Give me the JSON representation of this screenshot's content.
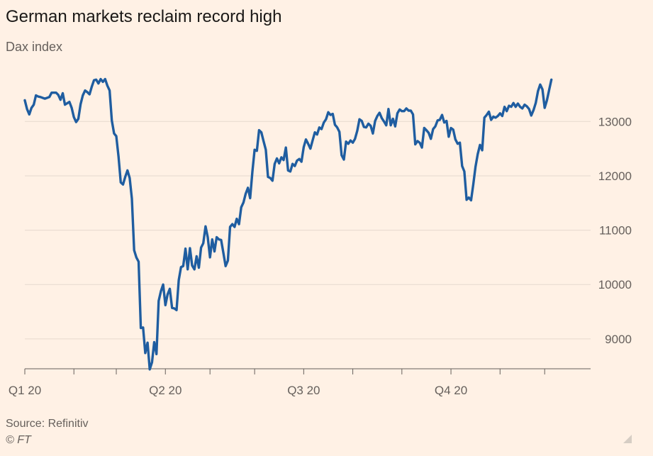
{
  "header": {
    "title": "German markets reclaim record high",
    "subtitle": "Dax index"
  },
  "footer": {
    "source": "Source: Refinitiv",
    "credit": "© FT"
  },
  "colors": {
    "background": "#fff1e5",
    "line": "#1f5da0",
    "grid": "#e6d9ce",
    "axis": "#66605c",
    "text": "#33302e"
  },
  "chart_data": {
    "type": "line",
    "x_unit": "trading day of 2020 (approx.)",
    "xlim": [
      0,
      252
    ],
    "ylim": [
      8450,
      13800
    ],
    "y_axis_position": "right",
    "grid": "horizontal",
    "yticks": [
      {
        "value": 9000,
        "label": "9000"
      },
      {
        "value": 10000,
        "label": "10000"
      },
      {
        "value": 11000,
        "label": "11000"
      },
      {
        "value": 12000,
        "label": "12000"
      },
      {
        "value": 13000,
        "label": "13000"
      }
    ],
    "x_labels": [
      {
        "day": 0,
        "label": "Q1 20"
      },
      {
        "day": 63,
        "label": "Q2 20"
      },
      {
        "day": 125,
        "label": "Q3 20"
      },
      {
        "day": 191,
        "label": "Q4 20"
      }
    ],
    "x_month_ticks": [
      0,
      22,
      41,
      63,
      83,
      103,
      125,
      147,
      169,
      191,
      213,
      233
    ],
    "series": [
      {
        "values": [
          [
            0,
            13390
          ],
          [
            1,
            13230
          ],
          [
            2,
            13130
          ],
          [
            3,
            13250
          ],
          [
            4,
            13310
          ],
          [
            5,
            13480
          ],
          [
            6,
            13460
          ],
          [
            7,
            13450
          ],
          [
            9,
            13420
          ],
          [
            11,
            13450
          ],
          [
            12,
            13530
          ],
          [
            14,
            13530
          ],
          [
            15,
            13490
          ],
          [
            16,
            13400
          ],
          [
            17,
            13520
          ],
          [
            18,
            13310
          ],
          [
            20,
            13360
          ],
          [
            21,
            13250
          ],
          [
            22,
            13080
          ],
          [
            23,
            12990
          ],
          [
            24,
            13050
          ],
          [
            25,
            13320
          ],
          [
            26,
            13480
          ],
          [
            27,
            13570
          ],
          [
            28,
            13540
          ],
          [
            29,
            13500
          ],
          [
            30,
            13640
          ],
          [
            31,
            13760
          ],
          [
            32,
            13770
          ],
          [
            33,
            13700
          ],
          [
            34,
            13780
          ],
          [
            35,
            13730
          ],
          [
            36,
            13780
          ],
          [
            37,
            13660
          ],
          [
            38,
            13570
          ],
          [
            39,
            13020
          ],
          [
            40,
            12780
          ],
          [
            41,
            12730
          ],
          [
            42,
            12350
          ],
          [
            43,
            11880
          ],
          [
            44,
            11840
          ],
          [
            45,
            11980
          ],
          [
            46,
            12100
          ],
          [
            47,
            11960
          ],
          [
            48,
            11580
          ],
          [
            49,
            10630
          ],
          [
            50,
            10500
          ],
          [
            51,
            10420
          ],
          [
            52,
            9200
          ],
          [
            53,
            9210
          ],
          [
            54,
            8740
          ],
          [
            55,
            8930
          ],
          [
            56,
            8440
          ],
          [
            57,
            8570
          ],
          [
            58,
            8940
          ],
          [
            59,
            8720
          ],
          [
            60,
            9700
          ],
          [
            61,
            9880
          ],
          [
            62,
            10000
          ],
          [
            63,
            9620
          ],
          [
            64,
            9820
          ],
          [
            65,
            9920
          ],
          [
            66,
            9570
          ],
          [
            67,
            9560
          ],
          [
            68,
            9530
          ],
          [
            69,
            10080
          ],
          [
            70,
            10320
          ],
          [
            71,
            10340
          ],
          [
            72,
            10660
          ],
          [
            73,
            10280
          ],
          [
            74,
            10670
          ],
          [
            75,
            10350
          ],
          [
            76,
            10280
          ],
          [
            77,
            10520
          ],
          [
            78,
            10310
          ],
          [
            79,
            10680
          ],
          [
            80,
            10760
          ],
          [
            81,
            11070
          ],
          [
            82,
            10870
          ],
          [
            83,
            10500
          ],
          [
            84,
            10830
          ],
          [
            85,
            10610
          ],
          [
            86,
            10870
          ],
          [
            87,
            10830
          ],
          [
            88,
            10820
          ],
          [
            89,
            10580
          ],
          [
            90,
            10340
          ],
          [
            91,
            10440
          ],
          [
            92,
            11060
          ],
          [
            93,
            11110
          ],
          [
            94,
            11060
          ],
          [
            95,
            11210
          ],
          [
            96,
            11110
          ],
          [
            97,
            11420
          ],
          [
            98,
            11510
          ],
          [
            99,
            11670
          ],
          [
            100,
            11780
          ],
          [
            101,
            11590
          ],
          [
            102,
            12080
          ],
          [
            103,
            12480
          ],
          [
            104,
            12460
          ],
          [
            105,
            12840
          ],
          [
            106,
            12800
          ],
          [
            107,
            12640
          ],
          [
            108,
            12480
          ],
          [
            109,
            11980
          ],
          [
            110,
            11960
          ],
          [
            111,
            11910
          ],
          [
            112,
            12220
          ],
          [
            113,
            12320
          ],
          [
            114,
            12230
          ],
          [
            115,
            12340
          ],
          [
            116,
            12290
          ],
          [
            117,
            12520
          ],
          [
            118,
            12100
          ],
          [
            119,
            12080
          ],
          [
            120,
            12220
          ],
          [
            121,
            12180
          ],
          [
            122,
            12280
          ],
          [
            123,
            12310
          ],
          [
            124,
            12260
          ],
          [
            125,
            12530
          ],
          [
            126,
            12670
          ],
          [
            127,
            12590
          ],
          [
            128,
            12500
          ],
          [
            129,
            12650
          ],
          [
            130,
            12800
          ],
          [
            131,
            12760
          ],
          [
            132,
            12890
          ],
          [
            133,
            12860
          ],
          [
            134,
            12980
          ],
          [
            135,
            13040
          ],
          [
            136,
            13170
          ],
          [
            137,
            13120
          ],
          [
            138,
            13140
          ],
          [
            139,
            12940
          ],
          [
            140,
            12890
          ],
          [
            141,
            12810
          ],
          [
            142,
            12380
          ],
          [
            143,
            12300
          ],
          [
            144,
            12630
          ],
          [
            145,
            12590
          ],
          [
            146,
            12650
          ],
          [
            147,
            12610
          ],
          [
            148,
            12680
          ],
          [
            149,
            12830
          ],
          [
            150,
            13040
          ],
          [
            151,
            13010
          ],
          [
            152,
            12900
          ],
          [
            153,
            12890
          ],
          [
            154,
            12960
          ],
          [
            155,
            12920
          ],
          [
            156,
            12780
          ],
          [
            157,
            13010
          ],
          [
            158,
            13100
          ],
          [
            159,
            13160
          ],
          [
            160,
            13060
          ],
          [
            161,
            13000
          ],
          [
            162,
            12930
          ],
          [
            163,
            13230
          ],
          [
            164,
            12930
          ],
          [
            165,
            13050
          ],
          [
            166,
            12910
          ],
          [
            167,
            13150
          ],
          [
            168,
            13220
          ],
          [
            169,
            13190
          ],
          [
            170,
            13190
          ],
          [
            171,
            13240
          ],
          [
            172,
            13200
          ],
          [
            173,
            13200
          ],
          [
            174,
            13130
          ],
          [
            175,
            12580
          ],
          [
            176,
            12640
          ],
          [
            177,
            12610
          ],
          [
            178,
            12520
          ],
          [
            179,
            12880
          ],
          [
            180,
            12840
          ],
          [
            181,
            12790
          ],
          [
            182,
            12680
          ],
          [
            183,
            12860
          ],
          [
            184,
            12910
          ],
          [
            185,
            13020
          ],
          [
            186,
            13030
          ],
          [
            187,
            13120
          ],
          [
            188,
            12980
          ],
          [
            189,
            13010
          ],
          [
            190,
            12720
          ],
          [
            191,
            12880
          ],
          [
            192,
            12850
          ],
          [
            193,
            12670
          ],
          [
            194,
            12590
          ],
          [
            195,
            12610
          ],
          [
            196,
            12180
          ],
          [
            197,
            12080
          ],
          [
            198,
            11560
          ],
          [
            199,
            11600
          ],
          [
            200,
            11550
          ],
          [
            201,
            11840
          ],
          [
            202,
            12170
          ],
          [
            203,
            12400
          ],
          [
            204,
            12570
          ],
          [
            205,
            12470
          ],
          [
            206,
            13070
          ],
          [
            207,
            13120
          ],
          [
            208,
            13180
          ],
          [
            209,
            13030
          ],
          [
            210,
            13090
          ],
          [
            211,
            13070
          ],
          [
            212,
            13100
          ],
          [
            213,
            13150
          ],
          [
            214,
            13100
          ],
          [
            215,
            13270
          ],
          [
            216,
            13190
          ],
          [
            217,
            13290
          ],
          [
            218,
            13270
          ],
          [
            219,
            13340
          ],
          [
            220,
            13270
          ],
          [
            221,
            13330
          ],
          [
            222,
            13270
          ],
          [
            223,
            13240
          ],
          [
            224,
            13310
          ],
          [
            225,
            13280
          ],
          [
            226,
            13230
          ],
          [
            227,
            13110
          ],
          [
            228,
            13210
          ],
          [
            229,
            13340
          ],
          [
            230,
            13560
          ],
          [
            231,
            13680
          ],
          [
            232,
            13590
          ],
          [
            233,
            13250
          ],
          [
            234,
            13390
          ],
          [
            235,
            13580
          ],
          [
            236,
            13770
          ]
        ]
      }
    ]
  }
}
